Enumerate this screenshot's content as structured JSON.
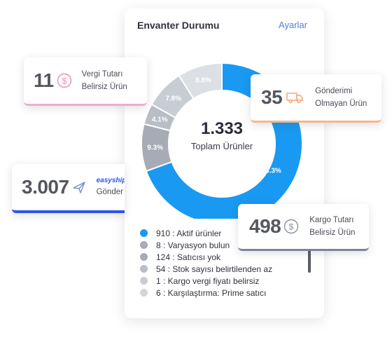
{
  "panel": {
    "title": "Envanter Durumu",
    "settings_link": "Ayarlar"
  },
  "donut": {
    "total_value": "1.333",
    "total_label": "Toplam Ürünler",
    "slices": [
      {
        "label": "68.3%",
        "value": 68.3,
        "color": "#1a99f2"
      },
      {
        "label": "9.3%",
        "value": 9.3,
        "color": "#a7abb5"
      },
      {
        "label": "4.1%",
        "value": 4.1,
        "color": "#b9bdc6"
      },
      {
        "label": "7.8%",
        "value": 7.8,
        "color": "#c8ccd3"
      },
      {
        "label": "8.8%",
        "value": 8.8,
        "color": "#dcdfe4"
      }
    ]
  },
  "legend": [
    {
      "text": "910 : Aktif ürünler",
      "color": "#1a99f2"
    },
    {
      "text": "8 : Varyasyon bulun",
      "color": "#a7abb5"
    },
    {
      "text": "124 : Satıcısı yok",
      "color": "#a7abb5"
    },
    {
      "text": "54 : Stok sayısı belirtilenden az",
      "color": "#b9bdc6"
    },
    {
      "text": "1 : Kargo vergi fiyatı belirsiz",
      "color": "#c8ccd3"
    },
    {
      "text": "6 : Karşılaştırma: Prime satıcı",
      "color": "#d3d6dc"
    }
  ],
  "cards": {
    "tax": {
      "value": "11",
      "label1": "Vergi Tutarı",
      "label2": "Belirsiz Ürün",
      "icon": "dollar-icon",
      "accent": "#f5a9cf"
    },
    "unsent": {
      "value": "35",
      "label1": "Gönderimi",
      "label2": "Olmayan Ürün",
      "icon": "truck-icon",
      "accent": "#f8b68a"
    },
    "easyship": {
      "value": "3.007",
      "brand": "easyship",
      "label": "Gönder",
      "icon": "airplane-icon",
      "accent": "#2f55e6"
    },
    "shipping": {
      "value": "498",
      "label1": "Kargo Tutarı",
      "label2": "Belirsiz Ürün",
      "icon": "dollar-icon",
      "accent": "#7b8594"
    }
  }
}
